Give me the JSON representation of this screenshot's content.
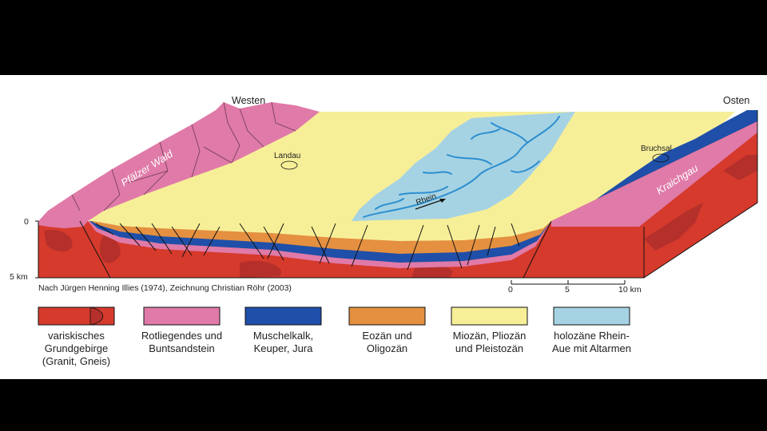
{
  "directions": {
    "west": "Westen",
    "east": "Osten"
  },
  "places": {
    "landau": "Landau",
    "bruchsal": "Bruchsal",
    "rhein": "Rhein"
  },
  "regions": {
    "pfaelzer_wald": "Pfälzer Wald",
    "kraichgau": "Kraichgau"
  },
  "depth_axis": {
    "top": "0",
    "bottom": "5 km"
  },
  "credit": "Nach Jürgen Henning Illies (1974), Zeichnung Christian Röhr (2003)",
  "scale_bar": {
    "ticks": [
      "0",
      "5",
      "10 km"
    ]
  },
  "colors": {
    "basement": "#d63a2c",
    "basement_dark": "#b5302a",
    "rotliegendes": "#e07aa8",
    "muschelkalk": "#1f4fa8",
    "eozaen": "#e49040",
    "miozaen": "#f7ef98",
    "rheinaue": "#a6d3e3",
    "rheinaue_channel": "#2c8fd0"
  },
  "legend": [
    {
      "label": [
        "variskisches",
        "Grundgebirge",
        "(Granit, Gneis)"
      ]
    },
    {
      "label": [
        "Rotliegendes und",
        "Buntsandstein"
      ]
    },
    {
      "label": [
        "Muschelkalk,",
        "Keuper, Jura"
      ]
    },
    {
      "label": [
        "Eozän und",
        "Oligozän"
      ]
    },
    {
      "label": [
        "Miozän, Pliozän",
        "und Pleistozän"
      ]
    },
    {
      "label": [
        "holozäne Rhein-",
        "Aue mit Altarmen"
      ]
    }
  ]
}
